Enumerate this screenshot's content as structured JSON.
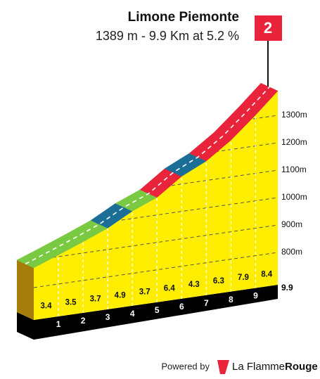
{
  "chart_data": {
    "type": "climb-profile",
    "title": "Limone Piemonte",
    "subtitle": "1389 m - 9.9 Km at 5.2 %",
    "category": "2",
    "x": [
      0,
      1,
      2,
      3,
      4,
      5,
      6,
      7,
      8,
      9,
      9.9
    ],
    "elevation": [
      872,
      906,
      941,
      978,
      1027,
      1064,
      1128,
      1171,
      1234,
      1313,
      1389
    ],
    "gradients": [
      3.4,
      3.5,
      3.7,
      4.9,
      3.7,
      6.4,
      4.3,
      6.3,
      7.9,
      8.4
    ],
    "segment_colors": [
      "#7ac943",
      "#7ac943",
      "#7ac943",
      "#1b6f97",
      "#7ac943",
      "#e8233a",
      "#1b6f97",
      "#e8233a",
      "#e8233a",
      "#e8233a"
    ],
    "yticks": [
      {
        "value": 800,
        "label": "800m"
      },
      {
        "value": 900,
        "label": "900m"
      },
      {
        "value": 1000,
        "label": "1000m"
      },
      {
        "value": 1100,
        "label": "1100m"
      },
      {
        "value": 1200,
        "label": "1200m"
      },
      {
        "value": 1300,
        "label": "1300m"
      }
    ],
    "fill_color": "#ffee00",
    "grid": true,
    "footer": {
      "powered": "Powered by",
      "brand_a": "La Flamme",
      "brand_b": "Rouge"
    }
  }
}
